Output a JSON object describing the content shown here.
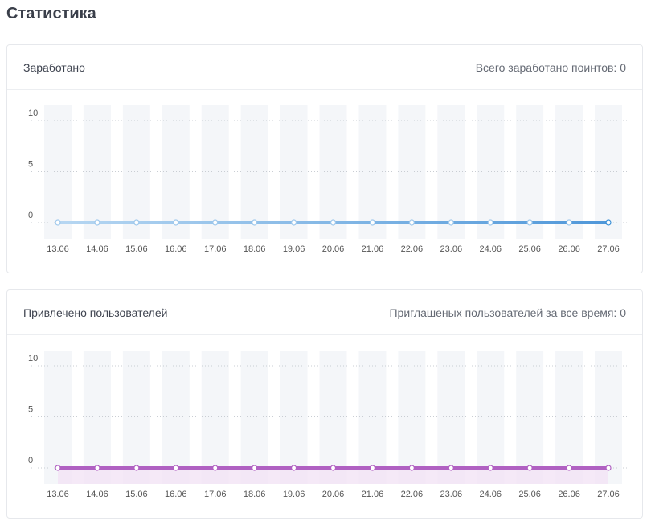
{
  "page": {
    "title": "Статистика"
  },
  "earned_card": {
    "title": "Заработано",
    "summary": "Всего заработано поинтов: 0"
  },
  "referrals_card": {
    "title": "Привлечено пользователей",
    "summary": "Приглашеных пользователей за все время: 0"
  },
  "chart_data": [
    {
      "type": "line",
      "x": [
        "13.06",
        "14.06",
        "15.06",
        "16.06",
        "17.06",
        "18.06",
        "19.06",
        "20.06",
        "21.06",
        "22.06",
        "23.06",
        "24.06",
        "25.06",
        "26.06",
        "27.06"
      ],
      "series": [
        {
          "values": [
            0,
            0,
            0,
            0,
            0,
            0,
            0,
            0,
            0,
            0,
            0,
            0,
            0,
            0,
            0
          ]
        }
      ],
      "yticks": [
        0,
        5,
        10
      ],
      "ylim": [
        0,
        10
      ],
      "grid": true,
      "colors": {
        "line_start": "#b7d7f2",
        "line_end": "#4f97d9",
        "bar_bg": "#f4f6f9"
      }
    },
    {
      "type": "area",
      "x": [
        "13.06",
        "14.06",
        "15.06",
        "16.06",
        "17.06",
        "18.06",
        "19.06",
        "20.06",
        "21.06",
        "22.06",
        "23.06",
        "24.06",
        "25.06",
        "26.06",
        "27.06"
      ],
      "series": [
        {
          "values": [
            0,
            0,
            0,
            0,
            0,
            0,
            0,
            0,
            0,
            0,
            0,
            0,
            0,
            0,
            0
          ]
        }
      ],
      "yticks": [
        0,
        5,
        10
      ],
      "ylim": [
        0,
        10
      ],
      "grid": true,
      "colors": {
        "line": "#b061c2",
        "fill": "#f2e3f5",
        "bar_bg": "#f4f6f9"
      }
    }
  ]
}
